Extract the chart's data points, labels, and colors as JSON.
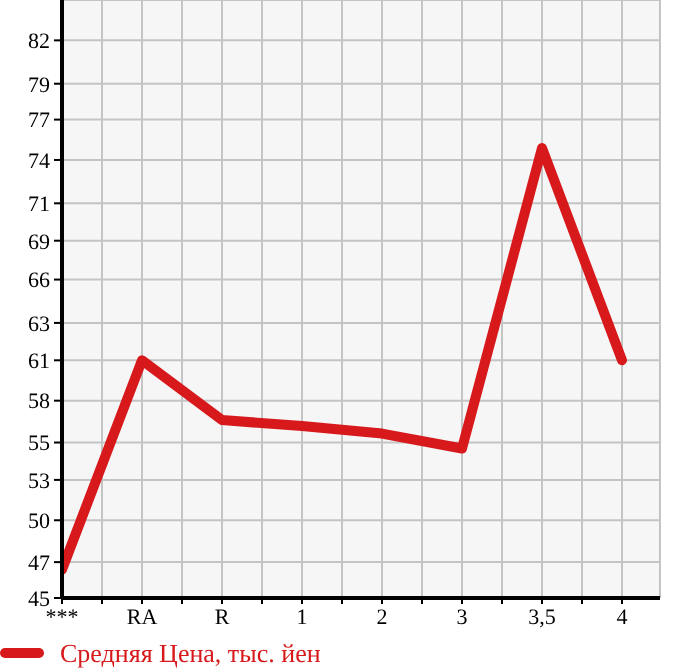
{
  "chart_data": {
    "type": "line",
    "categories": [
      "***",
      "RA",
      "R",
      "1",
      "2",
      "3",
      "3,5",
      "4"
    ],
    "series": [
      {
        "name": "Средняя Цена, тыс. йен",
        "color": "#d7191c",
        "values": [
          46.9,
          60.9,
          56.9,
          56.5,
          56.0,
          55.0,
          75.1,
          60.9
        ]
      }
    ],
    "ylim": [
      45,
      85
    ],
    "yticks": [
      45,
      {
        "value": 47.4,
        "label": "47"
      },
      {
        "value": 50.2,
        "label": "50"
      },
      {
        "value": 52.9,
        "label": "53"
      },
      {
        "value": 55.4,
        "label": "55"
      },
      {
        "value": 58.2,
        "label": "58"
      },
      {
        "value": 60.9,
        "label": "61"
      },
      {
        "value": 63.4,
        "label": "63"
      },
      {
        "value": 66.3,
        "label": "66"
      },
      {
        "value": 68.9,
        "label": "69"
      },
      {
        "value": 71.4,
        "label": "71"
      },
      {
        "value": 74.3,
        "label": "74"
      },
      {
        "value": 77.0,
        "label": "77"
      },
      {
        "value": 79.4,
        "label": "79"
      },
      {
        "value": 82.3,
        "label": "82"
      }
    ],
    "grid": true,
    "legend": "bottom left",
    "marker": "none",
    "line_style": "solid"
  }
}
